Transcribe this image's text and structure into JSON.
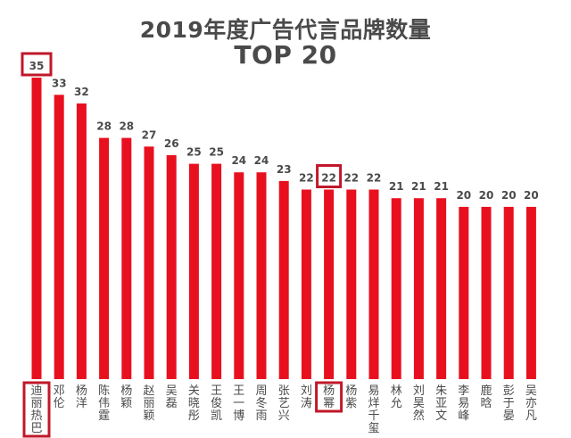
{
  "chart_data": {
    "type": "bar",
    "title": "2019年度广告代言品牌数量",
    "subtitle": "TOP 20",
    "categories": [
      "迪丽热巴",
      "邓伦",
      "杨洋",
      "陈伟霆",
      "杨颖",
      "赵丽颖",
      "吴磊",
      "关晓彤",
      "王俊凯",
      "王一博",
      "周冬雨",
      "张艺兴",
      "刘涛",
      "杨幂",
      "杨紫",
      "易烊千玺",
      "林允",
      "刘昊然",
      "朱亚文",
      "李易峰",
      "鹿晗",
      "彭于晏",
      "吴亦凡"
    ],
    "values": [
      35,
      33,
      32,
      28,
      28,
      27,
      26,
      25,
      25,
      24,
      24,
      23,
      22,
      22,
      22,
      22,
      21,
      21,
      21,
      20,
      20,
      20,
      20
    ],
    "highlighted": [
      "迪丽热巴",
      "杨幂"
    ],
    "ylim": [
      0,
      37
    ],
    "grid": false,
    "legend": "none",
    "colors": {
      "bar": "#e8101f",
      "highlight_box": "#c0182a",
      "text": "#4a4a4a"
    }
  }
}
